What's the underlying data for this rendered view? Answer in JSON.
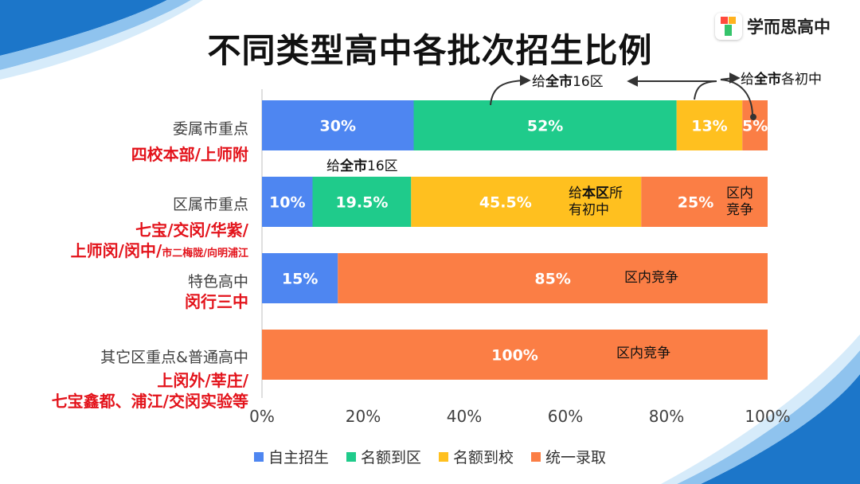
{
  "title": "不同类型高中各批次招生比例",
  "logo": {
    "text": "学而思高中"
  },
  "colors": {
    "自主招生": "#4e86f1",
    "名额到区": "#1fcb8b",
    "名额到校": "#ffc01f",
    "统一录取": "#fb7e45",
    "school_red": "#e3131b"
  },
  "chart_data": {
    "type": "bar",
    "orientation": "horizontal",
    "stacked": true,
    "categories": [
      "委属市重点",
      "区属市重点",
      "特色高中",
      "其它区重点&普通高中"
    ],
    "series": [
      {
        "name": "自主招生",
        "values": [
          30,
          10,
          15,
          0
        ],
        "labels": [
          "30%",
          "10%",
          "15%",
          ""
        ]
      },
      {
        "name": "名额到区",
        "values": [
          52,
          19.5,
          0,
          0
        ],
        "labels": [
          "52%",
          "19.5%",
          "",
          ""
        ]
      },
      {
        "name": "名额到校",
        "values": [
          13,
          45.5,
          0,
          0
        ],
        "labels": [
          "13%",
          "45.5%",
          "",
          ""
        ]
      },
      {
        "name": "统一录取",
        "values": [
          5,
          25,
          85,
          100
        ],
        "labels": [
          "5%",
          "25%",
          "85%",
          "100%"
        ]
      }
    ],
    "xlim": [
      0,
      100
    ],
    "xticks": [
      "0%",
      "20%",
      "40%",
      "60%",
      "80%",
      "100%"
    ],
    "legend_position": "bottom",
    "grid": false
  },
  "schools": [
    {
      "lines": [
        "四校本部/上师附"
      ]
    },
    {
      "lines": [
        "七宝/交闵/华紫/",
        "上师闵/闵中/"
      ],
      "small": "市二梅陇/向明浦江"
    },
    {
      "lines": [
        "闵行三中"
      ]
    },
    {
      "lines": [
        "上闵外/莘庄/",
        "七宝鑫都、浦江/交闵实验等"
      ]
    }
  ],
  "annotations": {
    "a1_pre": "给",
    "a1_bold": "全市",
    "a1_post": "16区",
    "a2_pre": "给",
    "a2_bold": "全市",
    "a2_post": "各初中",
    "a3_pre": "给",
    "a3_bold": "全市",
    "a3_post": "16区",
    "a4_pre": "给",
    "a4_bold": "本区",
    "a4_post": "所",
    "a4_line2": "有初中",
    "a5_line1": "区内",
    "a5_line2": "竞争",
    "a6": "区内竞争",
    "a7": "区内竞争"
  }
}
